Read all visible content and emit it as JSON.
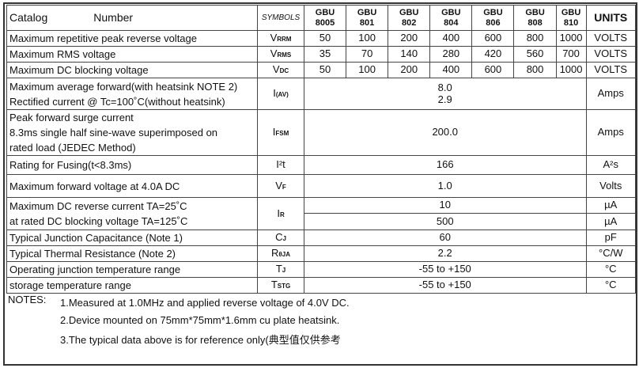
{
  "header": {
    "catalog": "Catalog",
    "number": "Number",
    "symbols": "SYMBOLS",
    "models": [
      [
        "GBU",
        "8005"
      ],
      [
        "GBU",
        "801"
      ],
      [
        "GBU",
        "802"
      ],
      [
        "GBU",
        "804"
      ],
      [
        "GBU",
        "806"
      ],
      [
        "GBU",
        "808"
      ],
      [
        "GBU",
        "810"
      ]
    ],
    "units": "UNITS"
  },
  "rows": [
    {
      "desc": [
        "Maximum repetitive peak reverse voltage"
      ],
      "sym": "V",
      "sub": "RRM",
      "values": [
        "50",
        "100",
        "200",
        "400",
        "600",
        "800",
        "1000"
      ],
      "unit": "VOLTS"
    },
    {
      "desc": [
        "Maximum RMS voltage"
      ],
      "sym": "V",
      "sub": "RMS",
      "values": [
        "35",
        "70",
        "140",
        "280",
        "420",
        "560",
        "700"
      ],
      "unit": "VOLTS"
    },
    {
      "desc": [
        "Maximum DC blocking voltage"
      ],
      "sym": "V",
      "sub": "DC",
      "values": [
        "50",
        "100",
        "200",
        "400",
        "600",
        "800",
        "1000"
      ],
      "unit": "VOLTS"
    },
    {
      "desc": [
        "Maximum average forward(with heatsink NOTE 2)",
        "Rectified current    @ Tc=100˚C(without heatsink)"
      ],
      "sym": "I",
      "sub": "(AV)",
      "value": [
        "8.0",
        "2.9"
      ],
      "unit": "Amps"
    },
    {
      "desc": [
        "Peak forward surge current",
        "8.3ms single half sine-wave superimposed on",
        "rated load (JEDEC Method)"
      ],
      "sym": "I",
      "sub": "FSM",
      "value": [
        "200.0"
      ],
      "unit": "Amps"
    },
    {
      "desc": [
        "Rating for Fusing(t<8.3ms)"
      ],
      "sym": "I²t",
      "sub": "",
      "value": [
        "166"
      ],
      "unit": "A²s"
    },
    {
      "desc": [
        "Maximum  forward voltage at 4.0A DC"
      ],
      "sym": "V",
      "sub": "F",
      "value": [
        "1.0"
      ],
      "unit": "Volts"
    },
    {
      "desc": [
        "Maximum DC reverse current      TA=25˚C",
        "at rated DC blocking voltage      TA=125˚C"
      ],
      "sym": "I",
      "sub": "R",
      "value": [
        "10",
        "500"
      ],
      "unit": [
        "µA",
        "µA"
      ]
    },
    {
      "desc": [
        "Typical Junction Capacitance (Note 1)"
      ],
      "sym": "C",
      "sub": "J",
      "value": [
        "60"
      ],
      "unit": "pF"
    },
    {
      "desc": [
        "Typical Thermal Resistance (Note 2)"
      ],
      "sym": "R",
      "sub": "θJA",
      "value": [
        "2.2"
      ],
      "unit": "°C/W"
    },
    {
      "desc": [
        "Operating junction temperature range"
      ],
      "sym": "T",
      "sub": "J",
      "value": [
        "-55 to +150"
      ],
      "unit": "°C"
    },
    {
      "desc": [
        "storage temperature range"
      ],
      "sym": "T",
      "sub": "STG",
      "value": [
        "-55 to +150"
      ],
      "unit": "°C"
    }
  ],
  "notes": {
    "label": "NOTES:",
    "items": [
      "1.Measured at 1.0MHz and applied reverse voltage of 4.0V DC.",
      "2.Device mounted on 75mm*75mm*1.6mm cu plate heatsink.",
      "3.The typical data above is for reference only(典型值仅供参考"
    ]
  }
}
